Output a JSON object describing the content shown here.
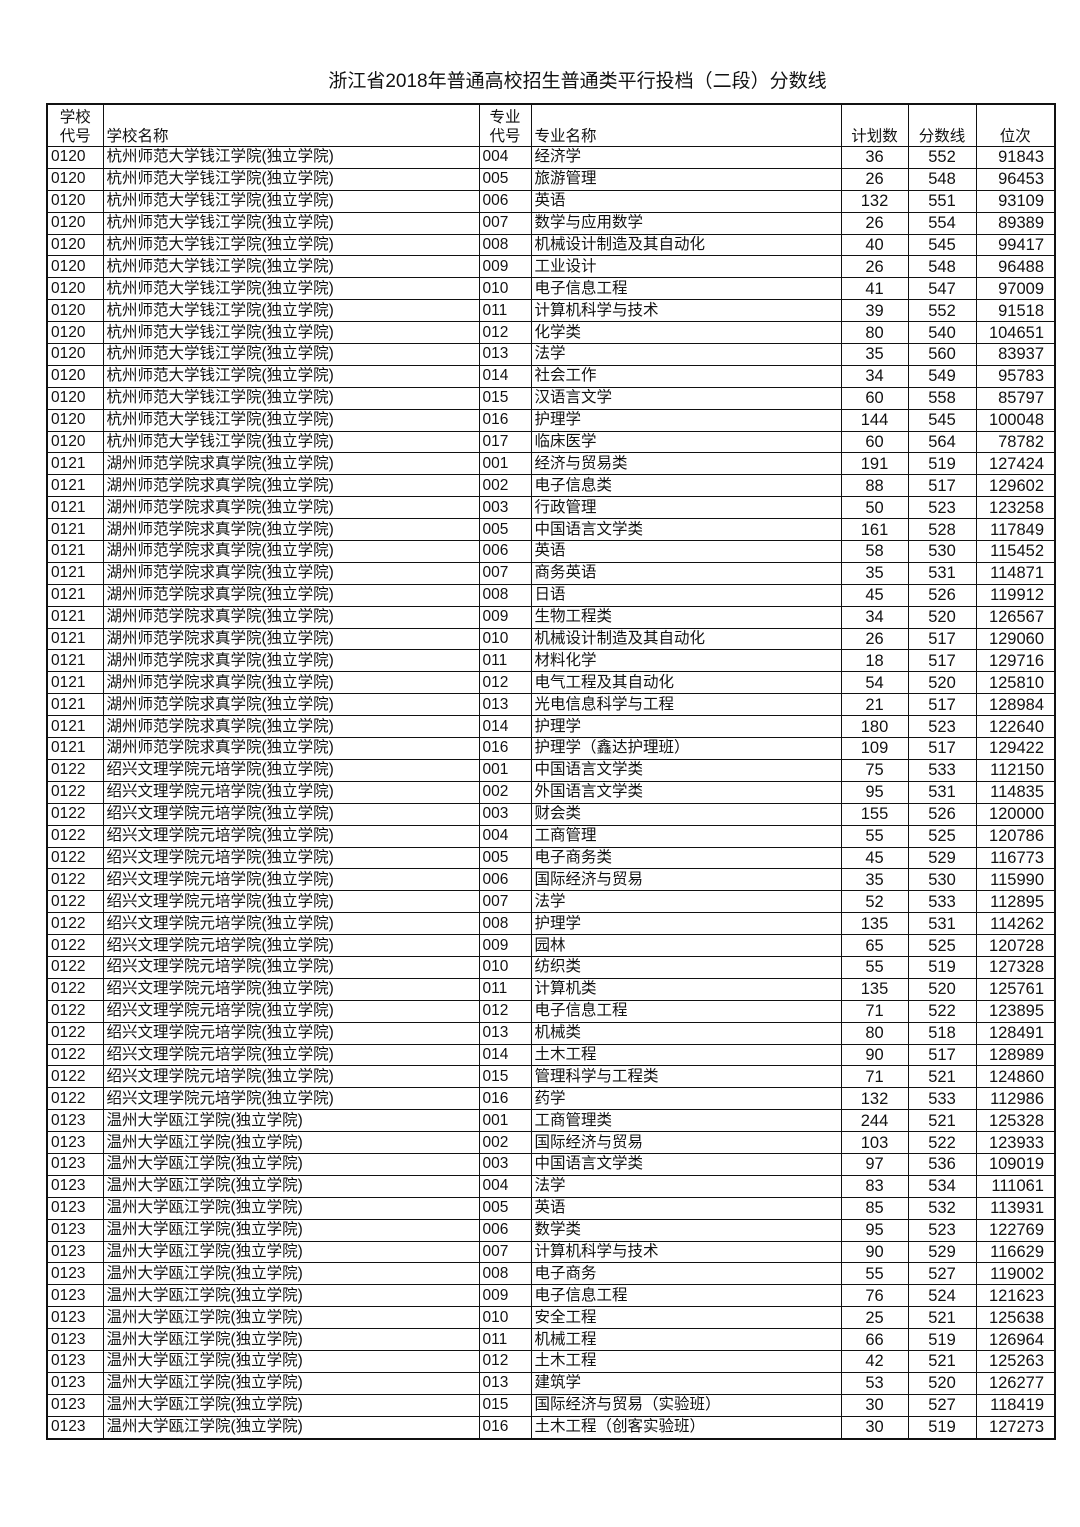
{
  "title": "浙江省2018年普通高校招生普通类平行投档（二段）分数线",
  "headers": {
    "school_code": "学校代号",
    "school_code_l1": "学校",
    "school_code_l2": "代号",
    "school_name": "学校名称",
    "major_code_l1": "专业",
    "major_code_l2": "代号",
    "major_name": "专业名称",
    "plan": "计划数",
    "score": "分数线",
    "rank": "位次"
  },
  "rows": [
    [
      "0120",
      "杭州师范大学钱江学院(独立学院)",
      "004",
      "经济学",
      "36",
      "552",
      "91843"
    ],
    [
      "0120",
      "杭州师范大学钱江学院(独立学院)",
      "005",
      "旅游管理",
      "26",
      "548",
      "96453"
    ],
    [
      "0120",
      "杭州师范大学钱江学院(独立学院)",
      "006",
      "英语",
      "132",
      "551",
      "93109"
    ],
    [
      "0120",
      "杭州师范大学钱江学院(独立学院)",
      "007",
      "数学与应用数学",
      "26",
      "554",
      "89389"
    ],
    [
      "0120",
      "杭州师范大学钱江学院(独立学院)",
      "008",
      "机械设计制造及其自动化",
      "40",
      "545",
      "99417"
    ],
    [
      "0120",
      "杭州师范大学钱江学院(独立学院)",
      "009",
      "工业设计",
      "26",
      "548",
      "96488"
    ],
    [
      "0120",
      "杭州师范大学钱江学院(独立学院)",
      "010",
      "电子信息工程",
      "41",
      "547",
      "97009"
    ],
    [
      "0120",
      "杭州师范大学钱江学院(独立学院)",
      "011",
      "计算机科学与技术",
      "39",
      "552",
      "91518"
    ],
    [
      "0120",
      "杭州师范大学钱江学院(独立学院)",
      "012",
      "化学类",
      "80",
      "540",
      "104651"
    ],
    [
      "0120",
      "杭州师范大学钱江学院(独立学院)",
      "013",
      "法学",
      "35",
      "560",
      "83937"
    ],
    [
      "0120",
      "杭州师范大学钱江学院(独立学院)",
      "014",
      "社会工作",
      "34",
      "549",
      "95783"
    ],
    [
      "0120",
      "杭州师范大学钱江学院(独立学院)",
      "015",
      "汉语言文学",
      "60",
      "558",
      "85797"
    ],
    [
      "0120",
      "杭州师范大学钱江学院(独立学院)",
      "016",
      "护理学",
      "144",
      "545",
      "100048"
    ],
    [
      "0120",
      "杭州师范大学钱江学院(独立学院)",
      "017",
      "临床医学",
      "60",
      "564",
      "78782"
    ],
    [
      "0121",
      "湖州师范学院求真学院(独立学院)",
      "001",
      "经济与贸易类",
      "191",
      "519",
      "127424"
    ],
    [
      "0121",
      "湖州师范学院求真学院(独立学院)",
      "002",
      "电子信息类",
      "88",
      "517",
      "129602"
    ],
    [
      "0121",
      "湖州师范学院求真学院(独立学院)",
      "003",
      "行政管理",
      "50",
      "523",
      "123258"
    ],
    [
      "0121",
      "湖州师范学院求真学院(独立学院)",
      "005",
      "中国语言文学类",
      "161",
      "528",
      "117849"
    ],
    [
      "0121",
      "湖州师范学院求真学院(独立学院)",
      "006",
      "英语",
      "58",
      "530",
      "115452"
    ],
    [
      "0121",
      "湖州师范学院求真学院(独立学院)",
      "007",
      "商务英语",
      "35",
      "531",
      "114871"
    ],
    [
      "0121",
      "湖州师范学院求真学院(独立学院)",
      "008",
      "日语",
      "45",
      "526",
      "119912"
    ],
    [
      "0121",
      "湖州师范学院求真学院(独立学院)",
      "009",
      "生物工程类",
      "34",
      "520",
      "126567"
    ],
    [
      "0121",
      "湖州师范学院求真学院(独立学院)",
      "010",
      "机械设计制造及其自动化",
      "26",
      "517",
      "129060"
    ],
    [
      "0121",
      "湖州师范学院求真学院(独立学院)",
      "011",
      "材料化学",
      "18",
      "517",
      "129716"
    ],
    [
      "0121",
      "湖州师范学院求真学院(独立学院)",
      "012",
      "电气工程及其自动化",
      "54",
      "520",
      "125810"
    ],
    [
      "0121",
      "湖州师范学院求真学院(独立学院)",
      "013",
      "光电信息科学与工程",
      "21",
      "517",
      "128984"
    ],
    [
      "0121",
      "湖州师范学院求真学院(独立学院)",
      "014",
      "护理学",
      "180",
      "523",
      "122640"
    ],
    [
      "0121",
      "湖州师范学院求真学院(独立学院)",
      "016",
      "护理学（鑫达护理班）",
      "109",
      "517",
      "129422"
    ],
    [
      "0122",
      "绍兴文理学院元培学院(独立学院)",
      "001",
      "中国语言文学类",
      "75",
      "533",
      "112150"
    ],
    [
      "0122",
      "绍兴文理学院元培学院(独立学院)",
      "002",
      "外国语言文学类",
      "95",
      "531",
      "114835"
    ],
    [
      "0122",
      "绍兴文理学院元培学院(独立学院)",
      "003",
      "财会类",
      "155",
      "526",
      "120000"
    ],
    [
      "0122",
      "绍兴文理学院元培学院(独立学院)",
      "004",
      "工商管理",
      "55",
      "525",
      "120786"
    ],
    [
      "0122",
      "绍兴文理学院元培学院(独立学院)",
      "005",
      "电子商务类",
      "45",
      "529",
      "116773"
    ],
    [
      "0122",
      "绍兴文理学院元培学院(独立学院)",
      "006",
      "国际经济与贸易",
      "35",
      "530",
      "115990"
    ],
    [
      "0122",
      "绍兴文理学院元培学院(独立学院)",
      "007",
      "法学",
      "52",
      "533",
      "112895"
    ],
    [
      "0122",
      "绍兴文理学院元培学院(独立学院)",
      "008",
      "护理学",
      "135",
      "531",
      "114262"
    ],
    [
      "0122",
      "绍兴文理学院元培学院(独立学院)",
      "009",
      "园林",
      "65",
      "525",
      "120728"
    ],
    [
      "0122",
      "绍兴文理学院元培学院(独立学院)",
      "010",
      "纺织类",
      "55",
      "519",
      "127328"
    ],
    [
      "0122",
      "绍兴文理学院元培学院(独立学院)",
      "011",
      "计算机类",
      "135",
      "520",
      "125761"
    ],
    [
      "0122",
      "绍兴文理学院元培学院(独立学院)",
      "012",
      "电子信息工程",
      "71",
      "522",
      "123895"
    ],
    [
      "0122",
      "绍兴文理学院元培学院(独立学院)",
      "013",
      "机械类",
      "80",
      "518",
      "128491"
    ],
    [
      "0122",
      "绍兴文理学院元培学院(独立学院)",
      "014",
      "土木工程",
      "90",
      "517",
      "128989"
    ],
    [
      "0122",
      "绍兴文理学院元培学院(独立学院)",
      "015",
      "管理科学与工程类",
      "71",
      "521",
      "124860"
    ],
    [
      "0122",
      "绍兴文理学院元培学院(独立学院)",
      "016",
      "药学",
      "132",
      "533",
      "112986"
    ],
    [
      "0123",
      "温州大学瓯江学院(独立学院)",
      "001",
      "工商管理类",
      "244",
      "521",
      "125328"
    ],
    [
      "0123",
      "温州大学瓯江学院(独立学院)",
      "002",
      "国际经济与贸易",
      "103",
      "522",
      "123933"
    ],
    [
      "0123",
      "温州大学瓯江学院(独立学院)",
      "003",
      "中国语言文学类",
      "97",
      "536",
      "109019"
    ],
    [
      "0123",
      "温州大学瓯江学院(独立学院)",
      "004",
      "法学",
      "83",
      "534",
      "111061"
    ],
    [
      "0123",
      "温州大学瓯江学院(独立学院)",
      "005",
      "英语",
      "85",
      "532",
      "113931"
    ],
    [
      "0123",
      "温州大学瓯江学院(独立学院)",
      "006",
      "数学类",
      "95",
      "523",
      "122769"
    ],
    [
      "0123",
      "温州大学瓯江学院(独立学院)",
      "007",
      "计算机科学与技术",
      "90",
      "529",
      "116629"
    ],
    [
      "0123",
      "温州大学瓯江学院(独立学院)",
      "008",
      "电子商务",
      "55",
      "527",
      "119002"
    ],
    [
      "0123",
      "温州大学瓯江学院(独立学院)",
      "009",
      "电子信息工程",
      "76",
      "524",
      "121623"
    ],
    [
      "0123",
      "温州大学瓯江学院(独立学院)",
      "010",
      "安全工程",
      "25",
      "521",
      "125638"
    ],
    [
      "0123",
      "温州大学瓯江学院(独立学院)",
      "011",
      "机械工程",
      "66",
      "519",
      "126964"
    ],
    [
      "0123",
      "温州大学瓯江学院(独立学院)",
      "012",
      "土木工程",
      "42",
      "521",
      "125263"
    ],
    [
      "0123",
      "温州大学瓯江学院(独立学院)",
      "013",
      "建筑学",
      "53",
      "520",
      "126277"
    ],
    [
      "0123",
      "温州大学瓯江学院(独立学院)",
      "015",
      "国际经济与贸易（实验班）",
      "30",
      "527",
      "118419"
    ],
    [
      "0123",
      "温州大学瓯江学院(独立学院)",
      "016",
      "土木工程（创客实验班）",
      "30",
      "519",
      "127273"
    ]
  ]
}
